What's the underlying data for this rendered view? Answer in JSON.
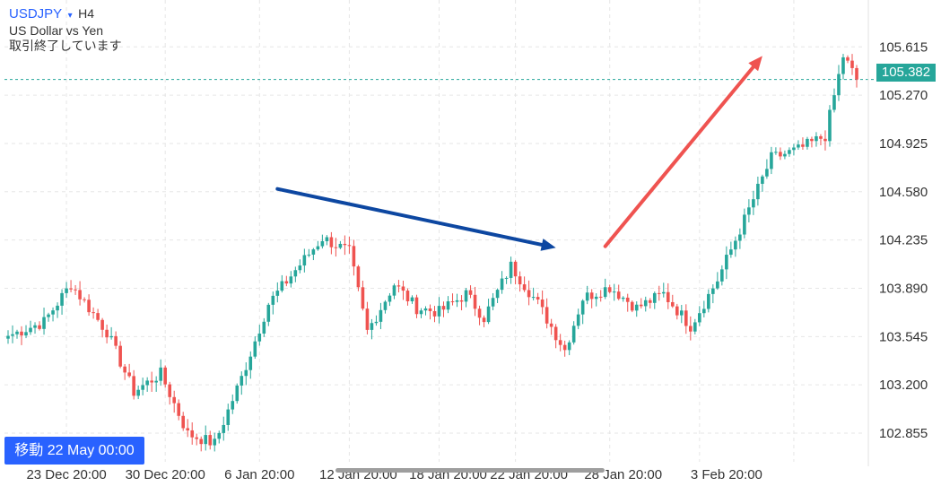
{
  "header": {
    "symbol": "USDJPY",
    "dropdown_glyph": "▾",
    "timeframe": "H4",
    "description": "US Dollar vs Yen",
    "market_status": "取引終了しています"
  },
  "goto_button": {
    "label": "移動 22 May 00:00"
  },
  "current_price": {
    "value": "105.382",
    "price": 105.382,
    "color": "#26a69a"
  },
  "colors": {
    "up": "#26a69a",
    "down": "#ef5350",
    "grid": "#e6e6e6",
    "blue_arrow": "#0d47a1",
    "red_arrow": "#ef5350"
  },
  "chart_data": {
    "type": "candlestick",
    "title": "",
    "x_tick_labels": [
      "23 Dec 20:00",
      "30 Dec 20:00",
      "6 Jan 20:00",
      "12 Jan 20:00",
      "18 Jan 20:00",
      "22 Jan 20:00",
      "28 Jan 20:00",
      "3 Feb 20:00"
    ],
    "y_tick_labels": [
      "105.615",
      "105.270",
      "104.925",
      "104.580",
      "104.235",
      "103.890",
      "103.545",
      "103.200",
      "102.855"
    ],
    "y_ticks": [
      105.615,
      105.27,
      104.925,
      104.58,
      104.235,
      103.89,
      103.545,
      103.2,
      102.855
    ],
    "ylim": [
      102.65,
      105.95
    ],
    "grid": true,
    "bar_count": 190,
    "anchor_closes": [
      [
        0,
        103.55
      ],
      [
        8,
        103.65
      ],
      [
        14,
        103.92
      ],
      [
        22,
        103.58
      ],
      [
        28,
        103.15
      ],
      [
        34,
        103.28
      ],
      [
        40,
        102.85
      ],
      [
        46,
        102.78
      ],
      [
        52,
        103.25
      ],
      [
        58,
        103.78
      ],
      [
        64,
        104.02
      ],
      [
        70,
        104.25
      ],
      [
        76,
        104.15
      ],
      [
        80,
        103.58
      ],
      [
        86,
        103.92
      ],
      [
        91,
        103.75
      ],
      [
        96,
        103.72
      ],
      [
        102,
        103.85
      ],
      [
        106,
        103.68
      ],
      [
        112,
        104.05
      ],
      [
        118,
        103.78
      ],
      [
        124,
        103.45
      ],
      [
        128,
        103.82
      ],
      [
        134,
        103.9
      ],
      [
        140,
        103.75
      ],
      [
        146,
        103.85
      ],
      [
        152,
        103.62
      ],
      [
        158,
        103.95
      ],
      [
        164,
        104.38
      ],
      [
        170,
        104.82
      ],
      [
        176,
        104.88
      ],
      [
        182,
        104.98
      ],
      [
        186,
        105.55
      ],
      [
        189,
        105.382
      ]
    ],
    "annotations": [
      {
        "type": "arrow",
        "color": "#0d47a1",
        "from": [
          60,
          104.6
        ],
        "to": [
          122,
          104.18
        ],
        "units": [
          "bar_index",
          "price"
        ]
      },
      {
        "type": "arrow",
        "color": "#ef5350",
        "from": [
          133,
          104.19
        ],
        "to": [
          168,
          105.55
        ],
        "units": [
          "bar_index",
          "price"
        ]
      }
    ]
  }
}
